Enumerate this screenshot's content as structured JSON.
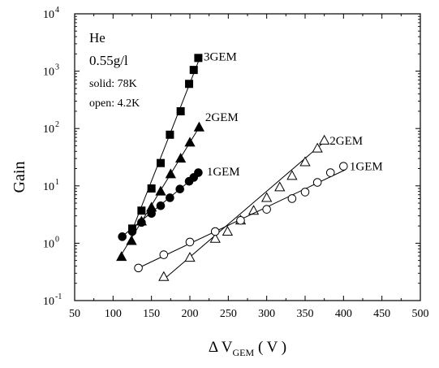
{
  "chart_data": {
    "type": "scatter",
    "xlabel_prefix": "Δ V",
    "xlabel_sub": "GEM",
    "xlabel_suffix": " ( V )",
    "ylabel": "Gain",
    "xlim": [
      50,
      500
    ],
    "ylim": [
      0.1,
      10000
    ],
    "yscale": "log",
    "xticks": [
      50,
      100,
      150,
      200,
      250,
      300,
      350,
      400,
      450,
      500
    ],
    "yticks": [
      {
        "value": 0.1,
        "base": "10",
        "exp": "-1"
      },
      {
        "value": 1,
        "base": "10",
        "exp": "0"
      },
      {
        "value": 10,
        "base": "10",
        "exp": "1"
      },
      {
        "value": 100,
        "base": "10",
        "exp": "2"
      },
      {
        "value": 1000,
        "base": "10",
        "exp": "3"
      },
      {
        "value": 10000,
        "base": "10",
        "exp": "4"
      }
    ],
    "annotations": {
      "gas": "He",
      "density": "0.55g/l",
      "solid": "solid: 78K",
      "open": "open: 4.2K"
    },
    "series": [
      {
        "name": "3GEM",
        "marker": "square",
        "filled": true,
        "label_at": [
          218,
          1800
        ],
        "fit": [
          [
            123,
            1.45
          ],
          [
            214,
            1850
          ]
        ],
        "points": [
          [
            125,
            1.8
          ],
          [
            137,
            3.7
          ],
          [
            150,
            9.0
          ],
          [
            162,
            25
          ],
          [
            174,
            78
          ],
          [
            188,
            200
          ],
          [
            199,
            600
          ],
          [
            205,
            1050
          ],
          [
            211,
            1700
          ]
        ]
      },
      {
        "name": "2GEM",
        "marker": "triangle",
        "filled": true,
        "label_at": [
          220,
          160
        ],
        "fit": [
          [
            108,
            0.55
          ],
          [
            213,
            110
          ]
        ],
        "points": [
          [
            111,
            0.58
          ],
          [
            124,
            1.1
          ],
          [
            137,
            2.4
          ],
          [
            150,
            4.2
          ],
          [
            162,
            8.0
          ],
          [
            175,
            16
          ],
          [
            188,
            30
          ],
          [
            200,
            57
          ],
          [
            212,
            105
          ]
        ]
      },
      {
        "name": "1GEM",
        "marker": "circle",
        "filled": true,
        "label_at": [
          222,
          18
        ],
        "fit": [
          [
            113,
            1.35
          ],
          [
            213,
            17
          ]
        ],
        "points": [
          [
            112,
            1.3
          ],
          [
            125,
            1.6
          ],
          [
            137,
            2.3
          ],
          [
            150,
            3.3
          ],
          [
            162,
            4.5
          ],
          [
            174,
            6.2
          ],
          [
            187,
            8.8
          ],
          [
            199,
            12
          ],
          [
            205,
            14
          ],
          [
            211,
            17
          ]
        ]
      },
      {
        "name": "2GEM",
        "marker": "triangle",
        "filled": false,
        "label_at": [
          382,
          62
        ],
        "fit": [
          [
            167,
            0.24
          ],
          [
            376,
            60
          ]
        ],
        "points": [
          [
            166,
            0.26
          ],
          [
            200,
            0.56
          ],
          [
            233,
            1.2
          ],
          [
            249,
            1.6
          ],
          [
            266,
            2.5
          ],
          [
            283,
            3.7
          ],
          [
            300,
            6.2
          ],
          [
            317,
            9.5
          ],
          [
            333,
            15
          ],
          [
            350,
            26
          ],
          [
            366,
            45
          ],
          [
            375,
            62
          ]
        ]
      },
      {
        "name": "1GEM",
        "marker": "circle",
        "filled": false,
        "label_at": [
          408,
          22
        ],
        "fit": [
          [
            133,
            0.37
          ],
          [
            402,
            19
          ]
        ],
        "points": [
          [
            133,
            0.37
          ],
          [
            166,
            0.63
          ],
          [
            200,
            1.05
          ],
          [
            233,
            1.6
          ],
          [
            266,
            2.5
          ],
          [
            300,
            3.9
          ],
          [
            333,
            6.0
          ],
          [
            350,
            7.8
          ],
          [
            366,
            11.5
          ],
          [
            383,
            17
          ],
          [
            400,
            22
          ]
        ]
      }
    ]
  }
}
